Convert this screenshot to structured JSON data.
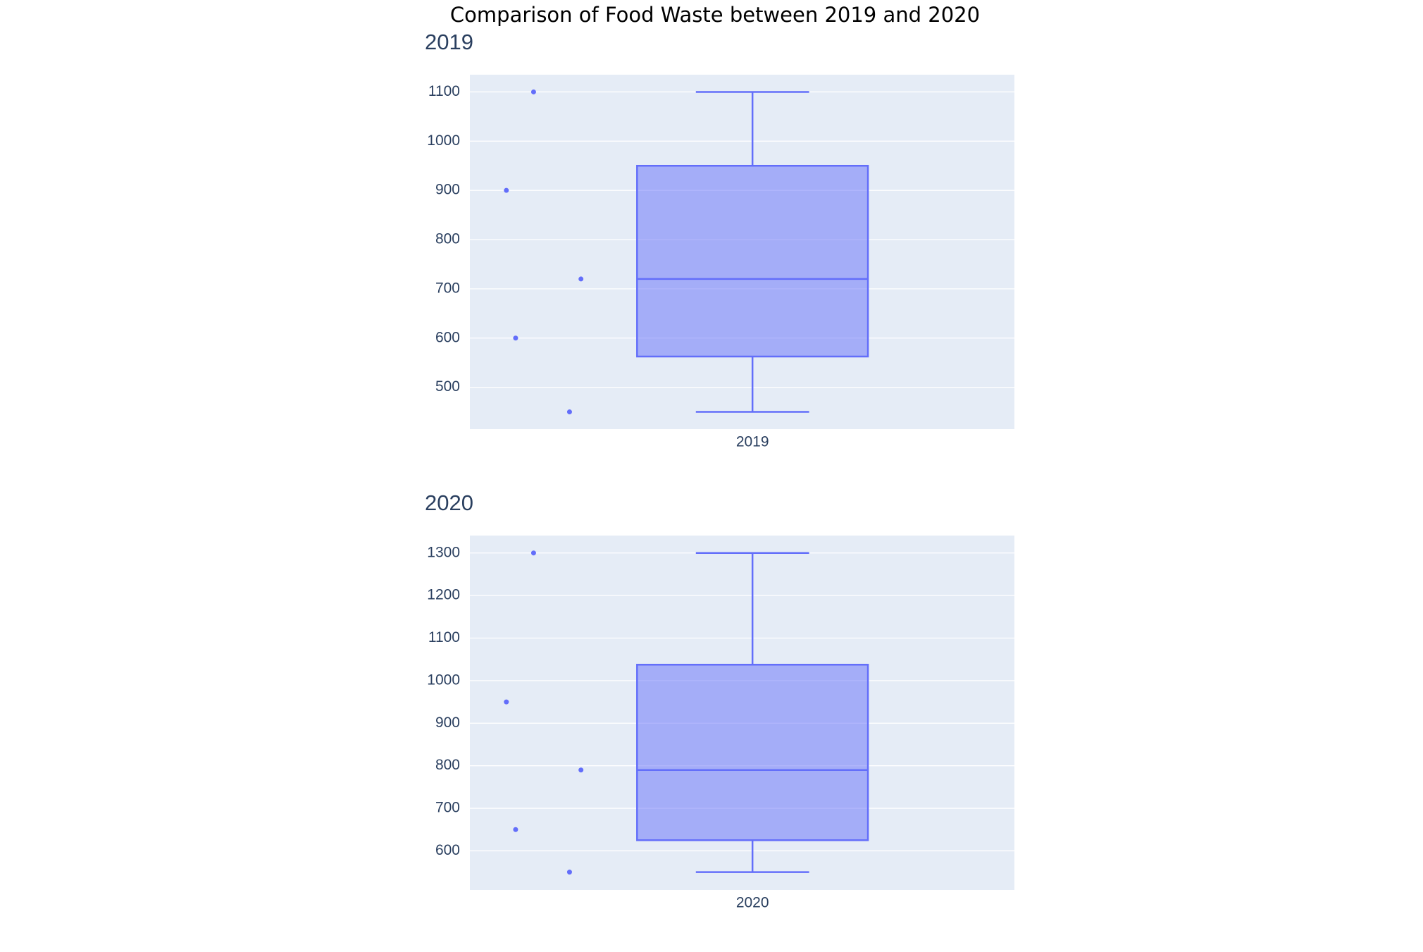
{
  "title": "Comparison of Food Waste between 2019 and 2020",
  "chart_data": [
    {
      "type": "box",
      "title": "2019",
      "categories": [
        "2019"
      ],
      "color": "#636efa",
      "points": [
        1100,
        900,
        720,
        600,
        450
      ],
      "lower": 450,
      "q1": 562.5,
      "median": 720,
      "q3": 950,
      "upper": 1100,
      "ylim": [
        415,
        1135
      ],
      "yticks": [
        500,
        600,
        700,
        800,
        900,
        1000,
        1100
      ],
      "grid": true
    },
    {
      "type": "box",
      "title": "2020",
      "categories": [
        "2020"
      ],
      "color": "#636efa",
      "points": [
        1300,
        950,
        790,
        650,
        550
      ],
      "lower": 550,
      "q1": 625,
      "median": 790,
      "q3": 1037.5,
      "upper": 1300,
      "ylim": [
        508,
        1341
      ],
      "yticks": [
        600,
        700,
        800,
        900,
        1000,
        1100,
        1200,
        1300
      ],
      "grid": true
    }
  ]
}
